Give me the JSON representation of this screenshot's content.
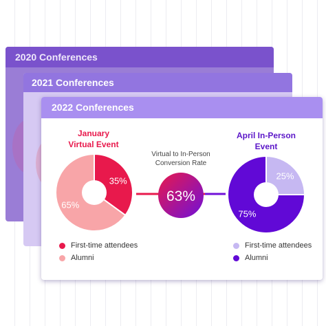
{
  "cards": [
    {
      "title": "2020 Conferences"
    },
    {
      "title": "2021 Conferences"
    },
    {
      "title": "2022 Conferences"
    }
  ],
  "chart_data": [
    {
      "type": "pie",
      "title_lines": [
        "January",
        "Virtual Event"
      ],
      "title_color": "#e8194c",
      "categories": [
        "First-time attendees",
        "Alumni"
      ],
      "values": [
        35,
        65
      ],
      "labels": [
        "35%",
        "65%"
      ],
      "colors": [
        "#e8194c",
        "#f8a5a8"
      ]
    },
    {
      "type": "pie",
      "title_lines": [
        "April In-Person",
        "Event"
      ],
      "title_color": "#5b16c8",
      "categories": [
        "First-time attendees",
        "Alumni"
      ],
      "values": [
        25,
        75
      ],
      "labels": [
        "25%",
        "75%"
      ],
      "colors": [
        "#c6b8f2",
        "#6109d6"
      ]
    }
  ],
  "conversion": {
    "label_lines": [
      "Virtual to In-Person",
      "Conversion Rate"
    ],
    "value": "63%",
    "gradient": [
      "#e8194c",
      "#7011d8"
    ]
  },
  "legend_left": [
    {
      "label": "First-time attendees",
      "color": "#e8194c"
    },
    {
      "label": "Alumni",
      "color": "#f8a5a8"
    }
  ],
  "legend_right": [
    {
      "label": "First-time attendees",
      "color": "#c6b8f2"
    },
    {
      "label": "Alumni",
      "color": "#6109d6"
    }
  ]
}
